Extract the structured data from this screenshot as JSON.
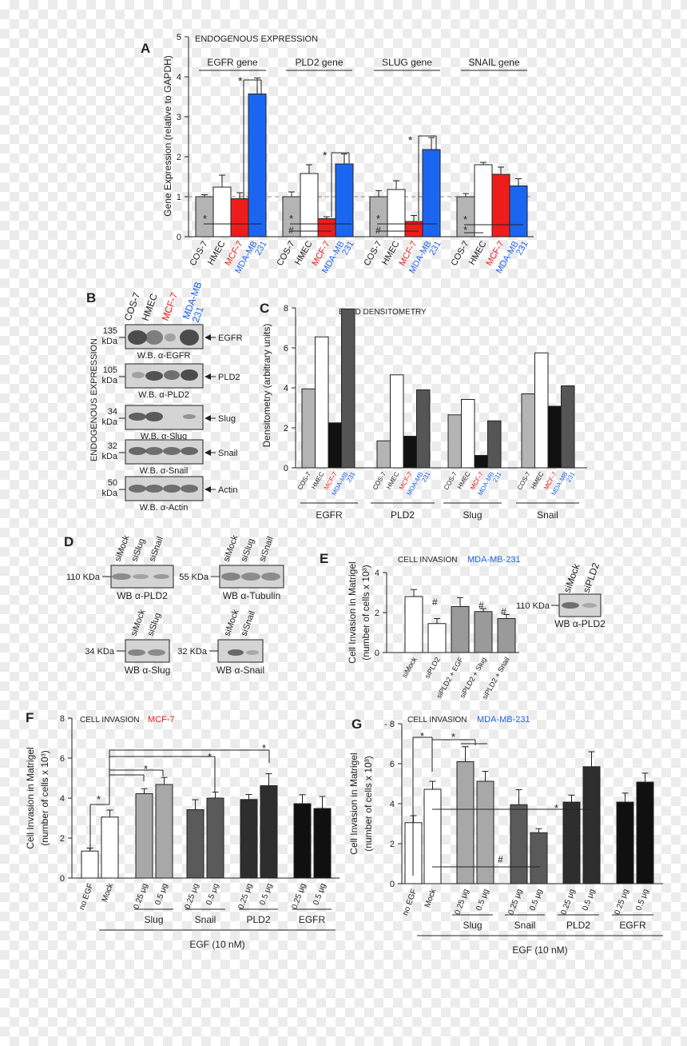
{
  "panels": {
    "A": {
      "letter": "A",
      "title": "ENDOGENOUS EXPRESSION",
      "ylabel": "Gene Expression (relative to GAPDH)",
      "yticks": [
        "0",
        "1",
        "2",
        "3",
        "4",
        "5"
      ]
    },
    "B": {
      "letter": "B",
      "side_label": "ENDOGENOUS EXPRESSION",
      "lanes": [
        "COS-7",
        "HMEC",
        "MCF-7",
        "MDA-MB 231"
      ],
      "blots": [
        {
          "kda": "135 kDa",
          "protein": "EGFR",
          "wb": "W.B. α-EGFR"
        },
        {
          "kda": "105 kDa",
          "protein": "PLD2",
          "wb": "W.B. α-PLD2"
        },
        {
          "kda": "34 kDa",
          "protein": "Slug",
          "wb": "W.B. α-Slug"
        },
        {
          "kda": "32 kDa",
          "protein": "Snail",
          "wb": "W.B. α-Snail"
        },
        {
          "kda": "50 kDa",
          "protein": "Actin",
          "wb": "W.B. α-Actin"
        }
      ]
    },
    "C": {
      "letter": "C",
      "title": "BAND DENSITOMETRY",
      "ylabel": "Densitometry (arbitrary units)",
      "yticks": [
        "0",
        "2",
        "4",
        "6",
        "8"
      ]
    },
    "D": {
      "letter": "D",
      "blots": [
        {
          "lanes": [
            "siMock",
            "siSlug",
            "siSnail"
          ],
          "kda": "110 KDa",
          "wb": "WB α-PLD2"
        },
        {
          "lanes": [
            "siMock",
            "siSlug",
            "siSnail"
          ],
          "kda": "55 KDa",
          "wb": "WB α-Tubulin"
        },
        {
          "lanes": [
            "siMock",
            "siSlug"
          ],
          "kda": "34 KDa",
          "wb": "WB α-Slug"
        },
        {
          "lanes": [
            "siMock",
            "siSnail"
          ],
          "kda": "32 KDa",
          "wb": "WB α-Snail"
        }
      ]
    },
    "E": {
      "letter": "E",
      "title": "CELL INVASION",
      "cell_line": "MDA-MB-231",
      "ylabel1": "Cell Invasion in Matrigel",
      "ylabel2": "(number of cells x 10³)",
      "yticks": [
        "0",
        "2",
        "4"
      ],
      "blot": {
        "lanes": [
          "siMock",
          "siPLD2"
        ],
        "kda": "110 KDa",
        "wb": "WB α-PLD2"
      }
    },
    "F": {
      "letter": "F",
      "title": "CELL INVASION",
      "cell_line": "MCF-7",
      "ylabel1": "Cell Invasion in Matrigel",
      "ylabel2": "(number of cells x 10³)",
      "yticks": [
        "0",
        "2",
        "4",
        "6",
        "8"
      ],
      "egf": "EGF (10 nM)"
    },
    "G": {
      "letter": "G",
      "title": "CELL INVASION",
      "cell_line": "MDA-MB-231",
      "ylabel1": "Cell Invasion in Matrigel",
      "ylabel2": "(number of cells x 10³)",
      "yticks": [
        "0",
        "2",
        "4",
        "6",
        "- 8"
      ],
      "egf": "EGF (10 nM)"
    }
  },
  "colors": {
    "gray": "#b4b4b4",
    "white": "#ffffff",
    "red": "#ef1c1c",
    "blue": "#1a66f0",
    "black": "#111111",
    "dark": "#555555",
    "mcf7_text": "#e8201f",
    "mda_text": "#2264e6"
  },
  "chart_data": [
    {
      "id": "A",
      "type": "bar",
      "title": "ENDOGENOUS EXPRESSION",
      "ylabel": "Gene Expression (relative to GAPDH)",
      "ylim": [
        0,
        5
      ],
      "groups": [
        "EGFR gene",
        "PLD2 gene",
        "SLUG gene",
        "SNAIL gene"
      ],
      "categories": [
        "COS-7",
        "HMEC",
        "MCF-7",
        "MDA-MB 231"
      ],
      "series": [
        {
          "name": "COS-7",
          "values": [
            1.0,
            1.0,
            1.0,
            1.0
          ],
          "errors": [
            0.05,
            0.12,
            0.15,
            0.08
          ]
        },
        {
          "name": "HMEC",
          "values": [
            1.24,
            1.58,
            1.18,
            1.8
          ],
          "errors": [
            0.3,
            0.22,
            0.22,
            0.06
          ]
        },
        {
          "name": "MCF-7",
          "values": [
            0.95,
            0.45,
            0.38,
            1.56
          ],
          "errors": [
            0.15,
            0.05,
            0.15,
            0.18
          ]
        },
        {
          "name": "MDA-MB 231",
          "values": [
            3.57,
            1.82,
            2.18,
            1.27
          ],
          "errors": [
            0.4,
            0.25,
            0.3,
            0.18
          ]
        }
      ],
      "reference_line": 1,
      "annotations": [
        "*",
        "*",
        "#",
        "*",
        "*",
        "#",
        "*",
        "*",
        "*",
        "*",
        "*"
      ]
    },
    {
      "id": "C",
      "type": "bar",
      "title": "BAND DENSITOMETRY",
      "ylabel": "Densitometry (arbitrary units)",
      "ylim": [
        0,
        8
      ],
      "groups": [
        "EGFR",
        "PLD2",
        "Slug",
        "Snail"
      ],
      "categories": [
        "COS-7",
        "HMEC",
        "MCF-7",
        "MDA-MB 231"
      ],
      "series": [
        {
          "name": "COS-7",
          "values": [
            3.95,
            1.35,
            2.65,
            3.7
          ]
        },
        {
          "name": "HMEC",
          "values": [
            6.55,
            4.65,
            3.42,
            5.75
          ]
        },
        {
          "name": "MCF-7",
          "values": [
            2.25,
            1.58,
            0.62,
            3.08
          ]
        },
        {
          "name": "MDA-MB 231",
          "values": [
            7.95,
            3.9,
            2.35,
            4.1
          ]
        }
      ]
    },
    {
      "id": "E",
      "type": "bar",
      "title": "CELL INVASION",
      "ylabel": "Cell Invasion in Matrigel (number of cells x 10³)",
      "ylim": [
        0,
        4
      ],
      "categories": [
        "siMock",
        "siPLD2",
        "siPLD2 + EGF",
        "siPLD2 + Slug",
        "siPLD2 + Snail"
      ],
      "values": [
        2.8,
        1.45,
        2.3,
        2.05,
        1.7
      ],
      "errors": [
        0.35,
        0.25,
        0.45,
        0.15,
        0.2
      ],
      "annotations": [
        "#",
        "#",
        "#"
      ]
    },
    {
      "id": "F",
      "type": "bar",
      "title": "CELL INVASION",
      "ylabel": "Cell Invasion in Matrigel (number of cells x 10³)",
      "ylim": [
        0,
        8
      ],
      "categories": [
        "no EGF",
        "Mock",
        "0.25 μg",
        "0.5 μg",
        "0.25 μg",
        "0.5 μg",
        "0.25 μg",
        "0.5 μg",
        "0.25 μg",
        "0.5 μg"
      ],
      "groups": [
        "Slug",
        "Snail",
        "PLD2",
        "EGFR"
      ],
      "values": [
        1.35,
        3.05,
        4.22,
        4.68,
        3.42,
        4.0,
        3.93,
        4.62,
        3.72,
        3.48
      ],
      "errors": [
        0.15,
        0.35,
        0.25,
        0.35,
        0.5,
        0.3,
        0.25,
        0.6,
        0.45,
        0.6
      ],
      "xlabel": "EGF (10 nM)",
      "annotations": [
        "*",
        "*",
        "*",
        "*",
        "*"
      ]
    },
    {
      "id": "G",
      "type": "bar",
      "title": "CELL INVASION",
      "ylabel": "Cell Invasion in Matrigel (number of cells x 10³)",
      "ylim": [
        0,
        8
      ],
      "categories": [
        "no EGF",
        "Mock",
        "0.25 μg",
        "0.5 μg",
        "0.25 μg",
        "0.5 μg",
        "0.25 μg",
        "0.5 μg",
        "0.25 μg",
        "0.5 μg"
      ],
      "groups": [
        "Slug",
        "Snail",
        "PLD2",
        "EGFR"
      ],
      "values": [
        3.05,
        4.72,
        6.1,
        5.12,
        3.95,
        2.55,
        4.08,
        5.85,
        4.08,
        5.08
      ],
      "errors": [
        0.35,
        0.4,
        0.75,
        0.5,
        0.75,
        0.2,
        0.35,
        0.75,
        0.45,
        0.45
      ],
      "xlabel": "EGF (10 nM)",
      "annotations": [
        "*",
        "*",
        "*",
        "#"
      ]
    }
  ]
}
